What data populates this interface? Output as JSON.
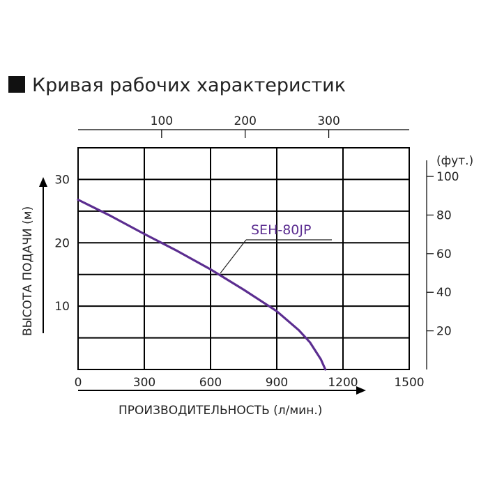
{
  "chart_data": {
    "type": "line",
    "title": "Кривая рабочих характеристик",
    "xlabel": "ПРОИЗВОДИТЕЛЬНОСТЬ (л/мин.)",
    "ylabel": "ВЫСОТА ПОДАЧИ (м)",
    "xlim": [
      0,
      1500
    ],
    "ylim": [
      0,
      35
    ],
    "x_ticks": [
      0,
      300,
      600,
      900,
      1200,
      1500
    ],
    "y_ticks": [
      10,
      20,
      30
    ],
    "grid": true,
    "secondary_x": {
      "ticks": [
        100,
        200,
        300
      ],
      "note": "top axis"
    },
    "secondary_y": {
      "unit": "(фут.)",
      "ticks": [
        20,
        40,
        60,
        80,
        100
      ]
    },
    "series": [
      {
        "name": "SEH-80JP",
        "color": "#5b2d90",
        "x": [
          0,
          150,
          300,
          450,
          600,
          750,
          900,
          1000,
          1050,
          1100,
          1120
        ],
        "y": [
          26.8,
          24.2,
          21.4,
          18.7,
          15.8,
          12.6,
          9.2,
          6.2,
          4.3,
          1.6,
          0
        ]
      }
    ]
  }
}
